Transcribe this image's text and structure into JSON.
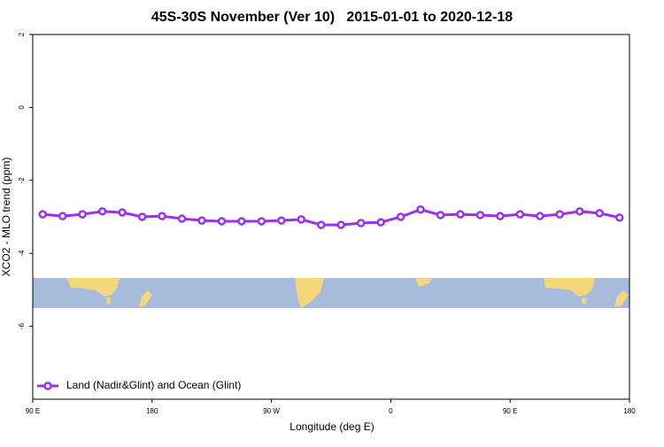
{
  "chart_data": {
    "type": "line",
    "title": "45S-30S November (Ver 10)   2015-01-01 to 2020-12-18",
    "x_label": "Longitude (deg E)",
    "y_label": "XCO2 - MLO trend (ppm)",
    "x": [
      97.5,
      112.5,
      127.5,
      142.5,
      157.5,
      172.5,
      187.5,
      202.5,
      217.5,
      232.5,
      247.5,
      262.5,
      277.5,
      292.5,
      307.5,
      322.5,
      337.5,
      352.5,
      367.5,
      382.5,
      397.5,
      412.5,
      427.5,
      442.5,
      457.5,
      472.5,
      487.5,
      502.5,
      517.5,
      532.5
    ],
    "series": [
      {
        "name": "Land (Nadir&Glint) and Ocean (Glint)",
        "color": "#9b30f0",
        "values": [
          -2.93,
          -2.98,
          -2.93,
          -2.85,
          -2.88,
          -3.0,
          -2.98,
          -3.05,
          -3.1,
          -3.12,
          -3.12,
          -3.12,
          -3.1,
          -3.07,
          -3.22,
          -3.22,
          -3.17,
          -3.15,
          -3.0,
          -2.8,
          -2.95,
          -2.93,
          -2.95,
          -2.98,
          -2.93,
          -2.98,
          -2.93,
          -2.85,
          -2.9,
          -3.02
        ]
      }
    ],
    "xlim": [
      90,
      540
    ],
    "xticks": [
      {
        "value": 90,
        "label": "90 E"
      },
      180,
      {
        "value": 270,
        "label": "90 W"
      },
      {
        "value": 360,
        "label": "0"
      },
      {
        "value": 450,
        "label": "90 E"
      },
      {
        "value": 540,
        "label": "180"
      }
    ],
    "ylim": [
      -8,
      2
    ],
    "yticks": [
      2,
      0,
      -2,
      -4,
      -6
    ],
    "grid": false,
    "legend": "bottom-left"
  }
}
